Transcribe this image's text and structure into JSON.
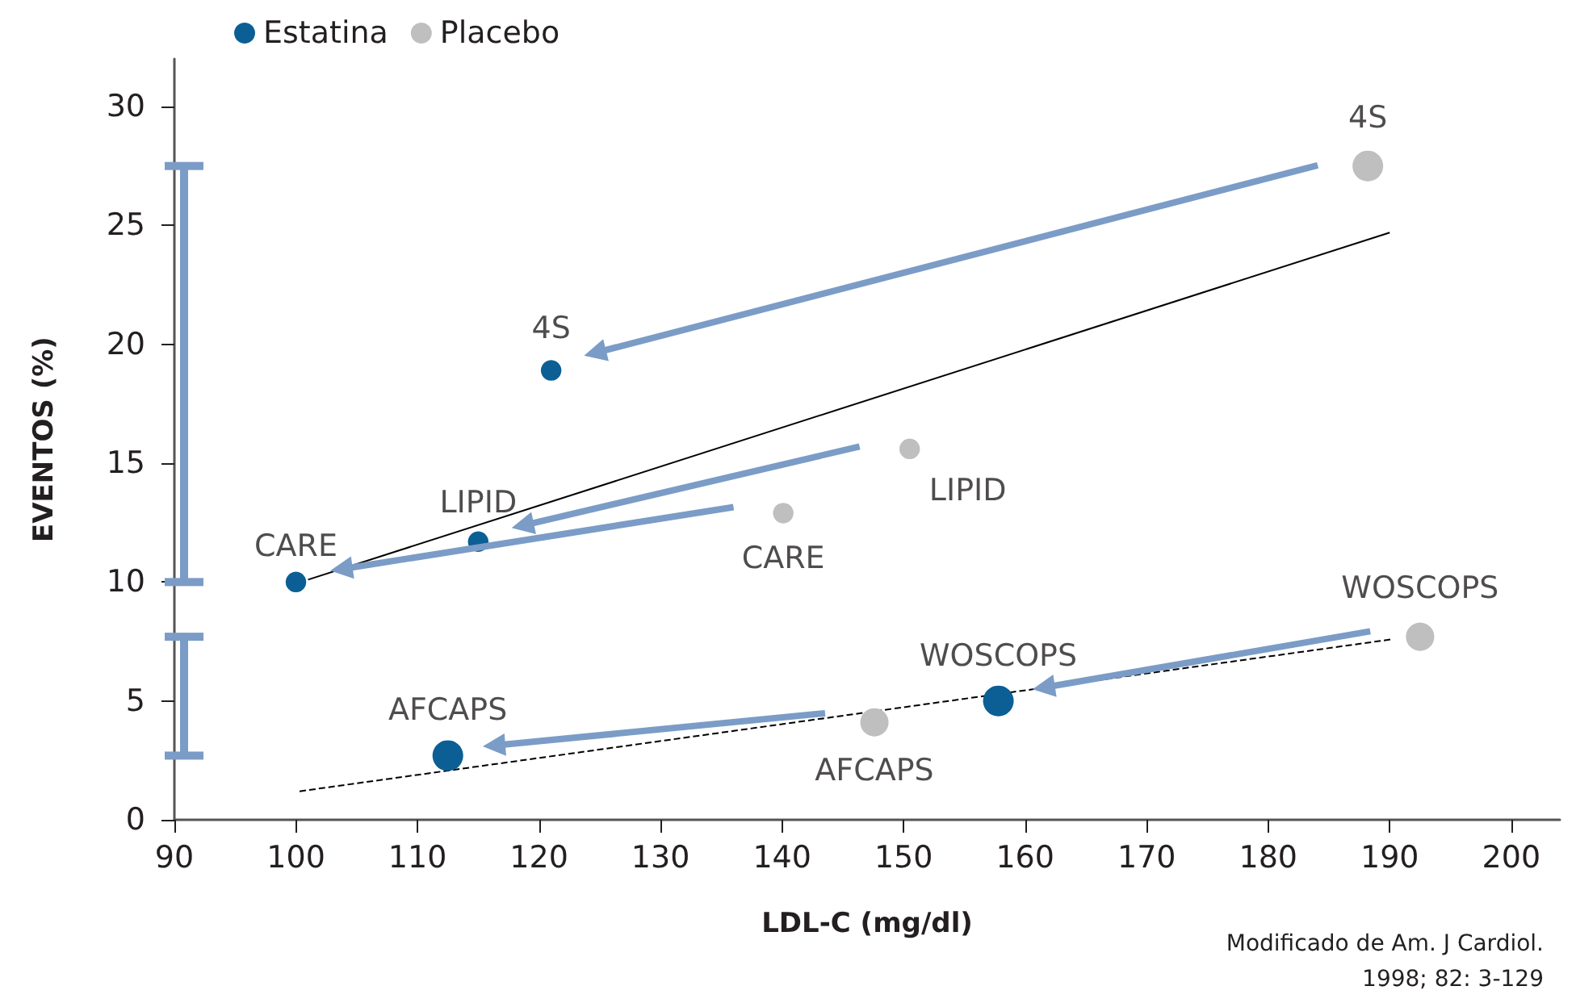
{
  "chart_data": {
    "type": "bubble",
    "xlabel": "LDL-C (mg/dl)",
    "ylabel": "EVENTOS (%)",
    "xlim": [
      90,
      204
    ],
    "xticks": [
      90,
      100,
      110,
      120,
      130,
      140,
      150,
      160,
      170,
      180,
      190,
      200
    ],
    "ylim": [
      0,
      32
    ],
    "yticks": [
      0,
      5,
      10,
      15,
      20,
      25,
      30
    ],
    "grid": false,
    "legend": "top left",
    "marker": "circle",
    "series": [
      {
        "name": "Estatina",
        "color": "#0b5f95",
        "x": [
          100,
          115,
          121,
          112.5,
          157.8
        ],
        "values": [
          10,
          11.7,
          18.9,
          2.7,
          5.0
        ],
        "sizes": [
          0.45,
          0.45,
          0.45,
          1,
          1
        ]
      },
      {
        "name": "Placebo",
        "color": "#bfbfbf",
        "x": [
          140.1,
          150.5,
          188.2,
          147.6,
          192.5
        ],
        "values": [
          12.9,
          15.6,
          27.5,
          4.1,
          7.7
        ],
        "sizes": [
          0.45,
          0.45,
          1,
          0.85,
          0.85
        ]
      },
      {
        "type": "line",
        "color": "#000000",
        "line_style": "solid",
        "marker": "none",
        "x": [
          101,
          190
        ],
        "values": [
          10.1,
          24.7
        ]
      },
      {
        "type": "line",
        "color": "#000000",
        "line_style": "dashed",
        "marker": "none",
        "x": [
          100.3,
          190.3
        ],
        "values": [
          1.2,
          7.6
        ]
      }
    ],
    "annotations": [
      {
        "text": "CARE",
        "x": 100,
        "y": 10
      },
      {
        "text": "LIPID",
        "x": 115,
        "y": 11.7
      },
      {
        "text": "4S",
        "x": 121,
        "y": 18.9
      },
      {
        "text": "AFCAPS",
        "x": 112.5,
        "y": 2.7
      },
      {
        "text": "WOSCOPS",
        "x": 157.8,
        "y": 5.0
      },
      {
        "text": "CARE",
        "x": 140.1,
        "y": 12.9
      },
      {
        "text": "LIPID",
        "x": 150.5,
        "y": 15.6
      },
      {
        "text": "4S",
        "x": 188.2,
        "y": 27.5
      },
      {
        "text": "AFCAPS",
        "x": 147.6,
        "y": 4.1
      },
      {
        "text": "WOSCOPS",
        "x": 192.5,
        "y": 7.7
      },
      "Modificado de Am. J Cardiol.\n1998; 82: 3-129"
    ]
  }
}
